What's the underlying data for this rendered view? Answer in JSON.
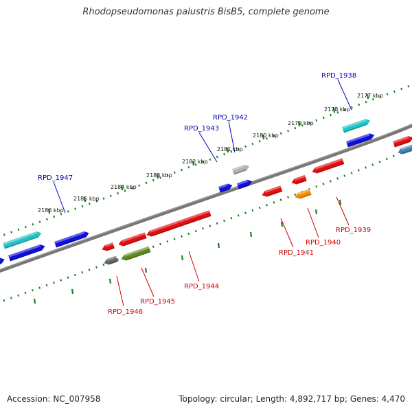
{
  "title": "Rhodopseudomonas palustris BisB5, complete genome",
  "footer": {
    "accession": "Accession: NC_007958",
    "stats": "Topology: circular; Length: 4,892,717 bp; Genes: 4,470"
  },
  "colors": {
    "backbone": "#777777",
    "ticks": "#1a7f1a",
    "forward_label": "#0000aa",
    "reverse_label": "#cc0000"
  },
  "scale_labels": [
    "2177 kbp",
    "2178 kbp",
    "2179 kbp",
    "2180 kbp",
    "2181 kbp",
    "2182 kbp",
    "2183 kbp",
    "2184 kbp",
    "2185 kbp",
    "2186 kbp"
  ],
  "gene_labels": [
    {
      "name": "RPD_1938",
      "strand": "forward"
    },
    {
      "name": "RPD_1942",
      "strand": "forward"
    },
    {
      "name": "RPD_1943",
      "strand": "forward"
    },
    {
      "name": "RPD_1947",
      "strand": "forward"
    },
    {
      "name": "RPD_1939",
      "strand": "reverse"
    },
    {
      "name": "RPD_1940",
      "strand": "reverse"
    },
    {
      "name": "RPD_1941",
      "strand": "reverse"
    },
    {
      "name": "RPD_1944",
      "strand": "reverse"
    },
    {
      "name": "RPD_1945",
      "strand": "reverse"
    },
    {
      "name": "RPD_1946",
      "strand": "reverse"
    }
  ],
  "gene_colors": {
    "forward_blue": "#1010dd",
    "forward_cyan": "#22c4c8",
    "forward_grey": "#b0b0b0",
    "reverse_red": "#e01010",
    "reverse_orange": "#f39000",
    "reverse_olive": "#5f8a1e",
    "reverse_darkgrey": "#666666",
    "reverse_steel": "#3f7fb0"
  }
}
